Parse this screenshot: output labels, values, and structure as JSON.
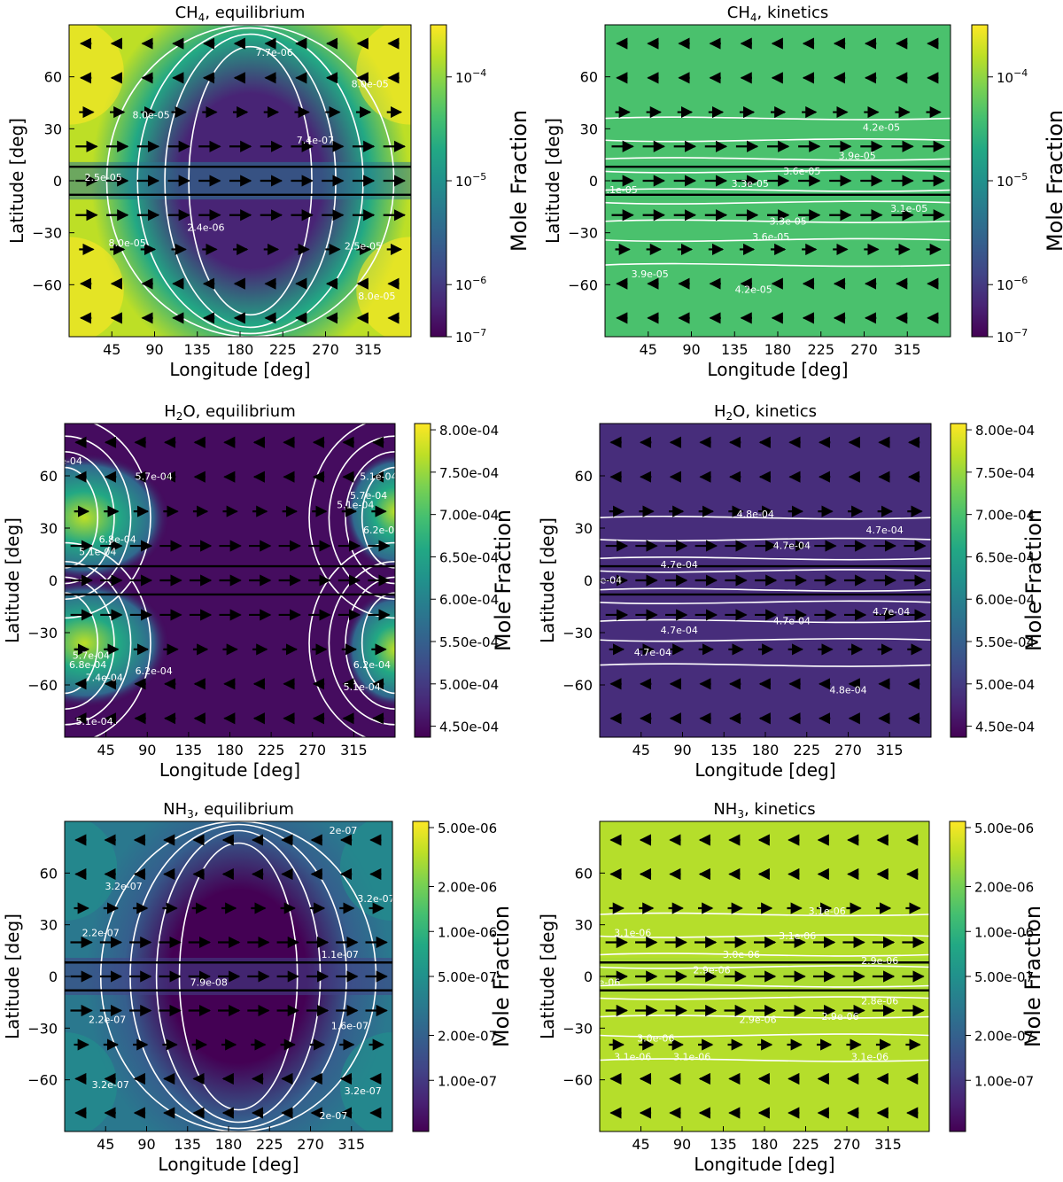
{
  "chart_data": [
    {
      "type": "heatmap",
      "title_species": "CH",
      "title_sub": "4",
      "title_suffix": ", equilibrium",
      "xlabel": "Longitude [deg]",
      "ylabel": "Latitude [deg]",
      "xlim": [
        0,
        360
      ],
      "ylim": [
        -90,
        90
      ],
      "xticks": [
        45,
        90,
        135,
        180,
        225,
        270,
        315
      ],
      "yticks": [
        -60,
        -30,
        0,
        30,
        60
      ],
      "colorbar": {
        "label": "Mole Fraction",
        "scale": "log",
        "ticks": [
          "10-4",
          "10-5",
          "10-6",
          "10-7"
        ],
        "tick_fracs": [
          0.833,
          0.5,
          0.167,
          0.0
        ]
      },
      "pattern": "eq",
      "contour_labels": [
        "7.7e-06",
        "8.0e-05",
        "8.0e-05",
        "7.4e-07",
        "2.5e-05",
        "8.0e-05",
        "2.4e-06",
        "2.5e-05",
        "8.0e-05"
      ]
    },
    {
      "type": "heatmap",
      "title_species": "CH",
      "title_sub": "4",
      "title_suffix": ", kinetics",
      "xlabel": "Longitude [deg]",
      "ylabel": "Latitude [deg]",
      "xlim": [
        0,
        360
      ],
      "ylim": [
        -90,
        90
      ],
      "xticks": [
        45,
        90,
        135,
        180,
        225,
        270,
        315
      ],
      "yticks": [
        -60,
        -30,
        0,
        30,
        60
      ],
      "colorbar": {
        "label": "Mole Fraction",
        "scale": "log",
        "ticks": [
          "10-4",
          "10-5",
          "10-6",
          "10-7"
        ],
        "tick_fracs": [
          0.833,
          0.5,
          0.167,
          0.0
        ]
      },
      "pattern": "kin",
      "contour_labels": [
        "4.2e-05",
        "3.9e-05",
        "3.6e-05",
        "3.3e-05",
        "3.1e-05",
        "3.1e-05",
        "3.3e-05",
        "3.6e-05",
        "3.9e-05",
        "4.2e-05"
      ]
    },
    {
      "type": "heatmap",
      "title_species": "H",
      "title_sub": "2",
      "title_suffix": "O, equilibrium",
      "xlabel": "Longitude [deg]",
      "ylabel": "Latitude [deg]",
      "xlim": [
        0,
        360
      ],
      "ylim": [
        -90,
        90
      ],
      "xticks": [
        45,
        90,
        135,
        180,
        225,
        270,
        315
      ],
      "yticks": [
        -60,
        -30,
        0,
        30,
        60
      ],
      "colorbar": {
        "label": "Mole Fraction",
        "scale": "linear",
        "ticks": [
          "8.00e-04",
          "7.50e-04",
          "7.00e-04",
          "6.50e-04",
          "6.00e-04",
          "5.50e-04",
          "5.00e-04",
          "4.50e-04"
        ],
        "tick_fracs": [
          0.98,
          0.845,
          0.71,
          0.575,
          0.44,
          0.305,
          0.17,
          0.035
        ]
      },
      "pattern": "h2o_eq",
      "contour_labels": [
        "e-04",
        "5.7e-04",
        "6.8e-04",
        "5.1e-04",
        "5.1e-04",
        "5.7e-04",
        "5.1e-04",
        "6.2e-04",
        "5.7e-04",
        "6.8e-04",
        "7.4e-04",
        "6.2e-04",
        "6.2e-04",
        "5.1e-04",
        "5.1e-04"
      ]
    },
    {
      "type": "heatmap",
      "title_species": "H",
      "title_sub": "2",
      "title_suffix": "O, kinetics",
      "xlabel": "Longitude [deg]",
      "ylabel": "Latitude [deg]",
      "xlim": [
        0,
        360
      ],
      "ylim": [
        -90,
        90
      ],
      "xticks": [
        45,
        90,
        135,
        180,
        225,
        270,
        315
      ],
      "yticks": [
        -60,
        -30,
        0,
        30,
        60
      ],
      "colorbar": {
        "label": "Mole Fraction",
        "scale": "linear",
        "ticks": [
          "8.00e-04",
          "7.50e-04",
          "7.00e-04",
          "6.50e-04",
          "6.00e-04",
          "5.50e-04",
          "5.00e-04",
          "4.50e-04"
        ],
        "tick_fracs": [
          0.98,
          0.845,
          0.71,
          0.575,
          0.44,
          0.305,
          0.17,
          0.035
        ]
      },
      "pattern": "h2o_kin",
      "contour_labels": [
        "4.8e-04",
        "4.7e-04",
        "4.7e-04",
        "4.7e-04",
        ".7e-04",
        "4.7e-04",
        "4.7e-04",
        "4.7e-04",
        "4.7e-04",
        "4.8e-04"
      ]
    },
    {
      "type": "heatmap",
      "title_species": "NH",
      "title_sub": "3",
      "title_suffix": ", equilibrium",
      "xlabel": "Longitude [deg]",
      "ylabel": "Latitude [deg]",
      "xlim": [
        0,
        360
      ],
      "ylim": [
        -90,
        90
      ],
      "xticks": [
        45,
        90,
        135,
        180,
        225,
        270,
        315
      ],
      "yticks": [
        -60,
        -30,
        0,
        30,
        60
      ],
      "colorbar": {
        "label": "Mole Fraction",
        "scale": "log",
        "ticks": [
          "5.00e-06",
          "2.00e-06",
          "1.00e-06",
          "5.00e-07",
          "2.00e-07",
          "1.00e-07"
        ],
        "tick_fracs": [
          0.98,
          0.79,
          0.645,
          0.5,
          0.31,
          0.165
        ]
      },
      "pattern": "eq",
      "contour_labels": [
        "3.2e-07",
        "2.2e-07",
        "3.2e-07",
        "1.1e-07",
        "2e-07",
        "7.9e-08",
        "2.2e-07",
        "1.6e-07",
        "3.2e-07",
        "3.2e-07",
        "2e-07"
      ]
    },
    {
      "type": "heatmap",
      "title_species": "NH",
      "title_sub": "3",
      "title_suffix": ", kinetics",
      "xlabel": "Longitude [deg]",
      "ylabel": "Latitude [deg]",
      "xlim": [
        0,
        360
      ],
      "ylim": [
        -90,
        90
      ],
      "xticks": [
        45,
        90,
        135,
        180,
        225,
        270,
        315
      ],
      "yticks": [
        -60,
        -30,
        0,
        30,
        60
      ],
      "colorbar": {
        "label": "Mole Fraction",
        "scale": "log",
        "ticks": [
          "5.00e-06",
          "2.00e-06",
          "1.00e-06",
          "5.00e-07",
          "2.00e-07",
          "1.00e-07"
        ],
        "tick_fracs": [
          0.98,
          0.79,
          0.645,
          0.5,
          0.31,
          0.165
        ]
      },
      "pattern": "kin",
      "contour_labels": [
        "3.1e-06",
        "3.1e-06",
        "3.1e-06",
        "3.0e-06",
        "2.9e-06",
        "2.9e-06",
        "8e-06",
        "2.8e-06",
        "2.9e-06",
        "2.9e-06",
        "3.0e-06",
        "3.1e-06",
        "3.1e-06",
        "3.1e-06"
      ]
    }
  ],
  "colors": {
    "viridis": [
      "#440154",
      "#482475",
      "#414487",
      "#355f8d",
      "#2a788e",
      "#21918c",
      "#22a884",
      "#44bf70",
      "#7ad151",
      "#bddf26",
      "#fde725"
    ],
    "contour": "#ffffff",
    "arrow": "#000000"
  }
}
